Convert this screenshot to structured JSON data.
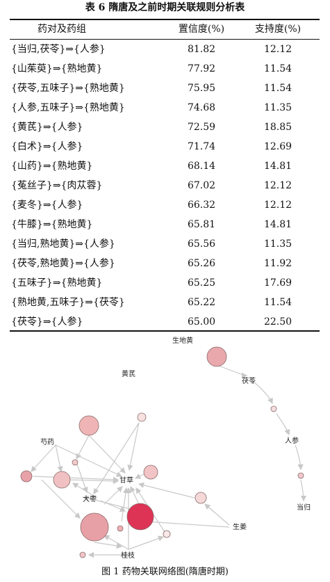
{
  "table": {
    "title": "表 6  隋唐及之前时期关联规则分析表",
    "header": [
      "药对及药组",
      "置信度(%)",
      "支持度(%)"
    ],
    "rows": [
      [
        "{当归,茯苓}⇒{人参}",
        "81.82",
        "12.12"
      ],
      [
        "{山茱萸}⇒{熟地黄}",
        "77.92",
        "11.54"
      ],
      [
        "{茯苓,五味子}⇒{熟地黄}",
        "75.95",
        "11.54"
      ],
      [
        "{人参,五味子}⇒{熟地黄}",
        "74.68",
        "11.35"
      ],
      [
        "{黄芪}⇒{人参}",
        "72.59",
        "18.85"
      ],
      [
        "{白术}⇒{人参}",
        "71.74",
        "12.69"
      ],
      [
        "{山药}⇒{熟地黄}",
        "68.14",
        "14.81"
      ],
      [
        "{菟丝子}⇒{肉苁蓉}",
        "67.02",
        "12.12"
      ],
      [
        "{麦冬}⇒{人参}",
        "66.32",
        "12.12"
      ],
      [
        "{牛膝}⇒{熟地黄}",
        "65.81",
        "14.81"
      ],
      [
        "{当归,熟地黄}⇒{人参}",
        "65.56",
        "11.35"
      ],
      [
        "{茯苓,熟地黄}⇒{人参}",
        "65.26",
        "11.92"
      ],
      [
        "{五味子}⇒{熟地黄}",
        "65.25",
        "17.69"
      ],
      [
        "{熟地黄,五味子}⇒{茯苓}",
        "65.22",
        "11.54"
      ],
      [
        "{茯苓}⇒{人参}",
        "65.00",
        "22.50"
      ]
    ]
  },
  "figure": {
    "nodes": [
      "生地黄",
      "茯苓",
      "人参",
      "当归",
      "黄芪",
      "芍药",
      "甘草",
      "大枣",
      "生姜",
      "桂枝"
    ],
    "caption": "图 1  药物关联网络图(隋唐时期)"
  }
}
